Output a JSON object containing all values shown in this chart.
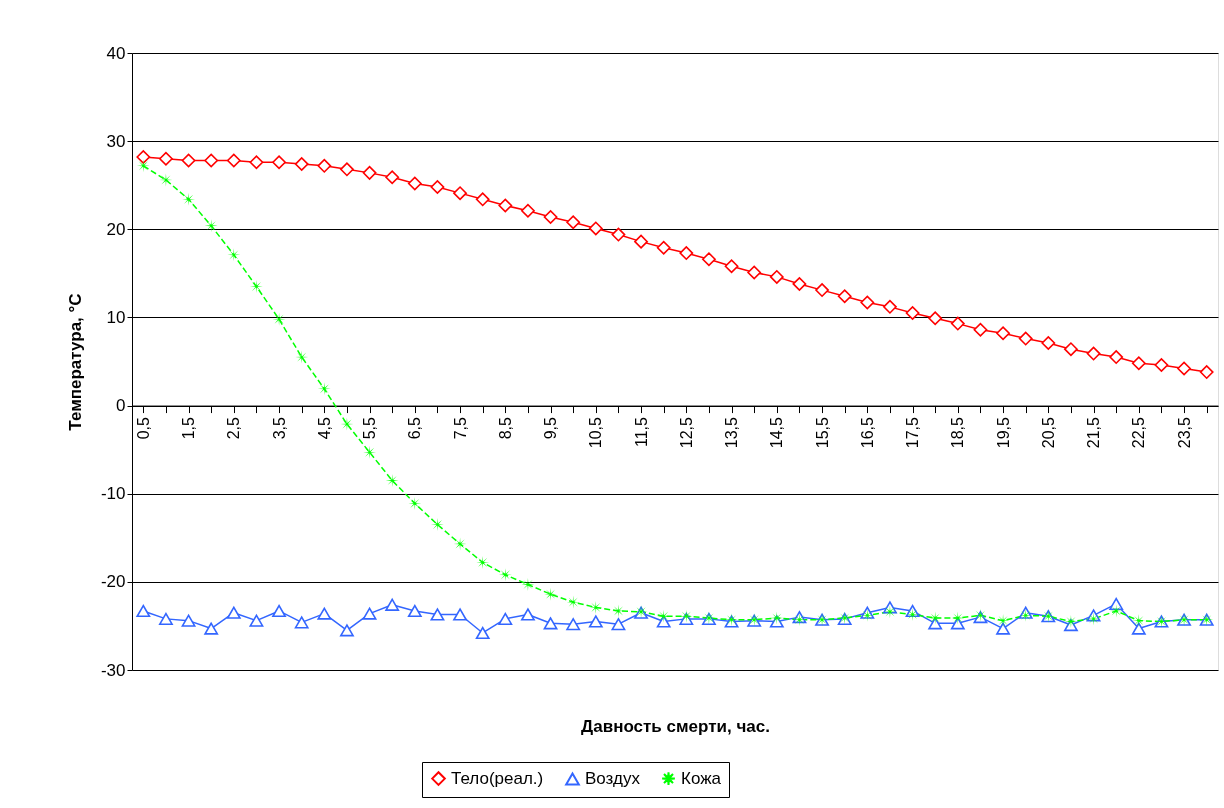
{
  "chart_data": {
    "type": "line",
    "xlabel": "Давность смерти, час.",
    "ylabel": "Температура, °C",
    "categories": [
      "0,5",
      null,
      "1,5",
      null,
      "2,5",
      null,
      "3,5",
      null,
      "4,5",
      null,
      "5,5",
      null,
      "6,5",
      null,
      "7,5",
      null,
      "8,5",
      null,
      "9,5",
      null,
      "10,5",
      null,
      "11,5",
      null,
      "12,5",
      null,
      "13,5",
      null,
      "14,5",
      null,
      "15,5",
      null,
      "16,5",
      null,
      "17,5",
      null,
      "18,5",
      null,
      "19,5",
      null,
      "20,5",
      null,
      "21,5",
      null,
      "22,5",
      null,
      "23,5",
      null
    ],
    "series": [
      {
        "name": "Тело(реал.)",
        "color": "#ff0000",
        "marker": "diamond",
        "line_style": "solid",
        "values": [
          28.2,
          28,
          27.8,
          27.8,
          27.8,
          27.6,
          27.6,
          27.4,
          27.2,
          26.8,
          26.4,
          25.9,
          25.2,
          24.8,
          24.1,
          23.4,
          22.7,
          22.1,
          21.4,
          20.8,
          20.1,
          19.4,
          18.6,
          17.9,
          17.3,
          16.6,
          15.8,
          15.1,
          14.6,
          13.8,
          13.1,
          12.4,
          11.7,
          11.2,
          10.5,
          9.9,
          9.3,
          8.6,
          8.2,
          7.6,
          7.1,
          6.4,
          5.9,
          5.5,
          4.8,
          4.6,
          4.2,
          3.8
        ]
      },
      {
        "name": "Воздух",
        "color": "#3366ff",
        "marker": "triangle",
        "line_style": "solid",
        "values": [
          -23.3,
          -24.2,
          -24.4,
          -25.3,
          -23.5,
          -24.4,
          -23.3,
          -24.6,
          -23.6,
          -25.5,
          -23.6,
          -22.6,
          -23.3,
          -23.7,
          -23.7,
          -25.8,
          -24.2,
          -23.7,
          -24.7,
          -24.8,
          -24.5,
          -24.8,
          -23.5,
          -24.5,
          -24.2,
          -24.2,
          -24.5,
          -24.4,
          -24.5,
          -24.0,
          -24.3,
          -24.2,
          -23.5,
          -22.9,
          -23.3,
          -24.7,
          -24.7,
          -24.0,
          -25.3,
          -23.5,
          -23.9,
          -24.9,
          -23.8,
          -22.5,
          -25.3,
          -24.5,
          -24.3,
          -24.3
        ]
      },
      {
        "name": "Кожа",
        "color": "#00ff00",
        "marker": "star",
        "line_style": "dashed",
        "values": [
          27.2,
          25.6,
          23.4,
          20.4,
          17.1,
          13.5,
          9.8,
          5.5,
          1.9,
          -2.1,
          -5.3,
          -8.5,
          -11.1,
          -13.5,
          -15.7,
          -17.8,
          -19.2,
          -20.3,
          -21.4,
          -22.3,
          -22.9,
          -23.3,
          -23.4,
          -23.9,
          -23.9,
          -24.1,
          -24.3,
          -24.3,
          -24.1,
          -24.3,
          -24.3,
          -24.1,
          -23.8,
          -23.4,
          -23.7,
          -24.1,
          -24.1,
          -23.8,
          -24.4,
          -23.8,
          -23.9,
          -24.5,
          -24.2,
          -23.3,
          -24.4,
          -24.5,
          -24.3,
          -24.3
        ]
      }
    ],
    "ylim": [
      -30,
      40
    ],
    "yticks": [
      -30,
      -20,
      -10,
      0,
      10,
      20,
      30,
      40
    ],
    "grid": "y",
    "legend": "bottom"
  }
}
